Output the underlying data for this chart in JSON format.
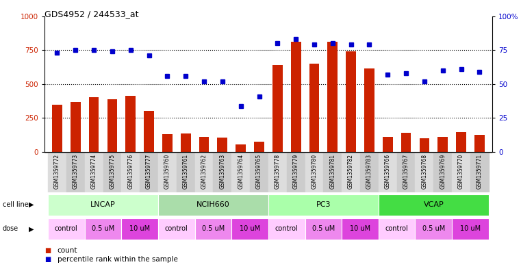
{
  "title": "GDS4952 / 244533_at",
  "samples": [
    "GSM1359772",
    "GSM1359773",
    "GSM1359774",
    "GSM1359775",
    "GSM1359776",
    "GSM1359777",
    "GSM1359760",
    "GSM1359761",
    "GSM1359762",
    "GSM1359763",
    "GSM1359764",
    "GSM1359765",
    "GSM1359778",
    "GSM1359779",
    "GSM1359780",
    "GSM1359781",
    "GSM1359782",
    "GSM1359783",
    "GSM1359766",
    "GSM1359767",
    "GSM1359768",
    "GSM1359769",
    "GSM1359770",
    "GSM1359771"
  ],
  "counts": [
    350,
    370,
    405,
    390,
    415,
    305,
    130,
    135,
    110,
    105,
    55,
    75,
    640,
    810,
    650,
    810,
    740,
    615,
    110,
    140,
    100,
    110,
    145,
    125
  ],
  "percentiles": [
    73,
    75,
    75,
    74,
    75,
    71,
    56,
    56,
    52,
    52,
    34,
    41,
    80,
    83,
    79,
    80,
    79,
    79,
    57,
    58,
    52,
    60,
    61,
    59
  ],
  "cell_lines": [
    {
      "name": "LNCAP",
      "start": 0,
      "end": 6,
      "color": "#ccffcc"
    },
    {
      "name": "NCIH660",
      "start": 6,
      "end": 12,
      "color": "#aaddaa"
    },
    {
      "name": "PC3",
      "start": 12,
      "end": 18,
      "color": "#aaffaa"
    },
    {
      "name": "VCAP",
      "start": 18,
      "end": 24,
      "color": "#44dd44"
    }
  ],
  "dose_groups": [
    {
      "label": "control",
      "start": 0,
      "end": 2,
      "color": "#ffccff"
    },
    {
      "label": "0.5 uM",
      "start": 2,
      "end": 4,
      "color": "#ee88ee"
    },
    {
      "label": "10 uM",
      "start": 4,
      "end": 6,
      "color": "#dd44dd"
    },
    {
      "label": "control",
      "start": 6,
      "end": 8,
      "color": "#ffccff"
    },
    {
      "label": "0.5 uM",
      "start": 8,
      "end": 10,
      "color": "#ee88ee"
    },
    {
      "label": "10 uM",
      "start": 10,
      "end": 12,
      "color": "#dd44dd"
    },
    {
      "label": "control",
      "start": 12,
      "end": 14,
      "color": "#ffccff"
    },
    {
      "label": "0.5 uM",
      "start": 14,
      "end": 16,
      "color": "#ee88ee"
    },
    {
      "label": "10 uM",
      "start": 16,
      "end": 18,
      "color": "#dd44dd"
    },
    {
      "label": "control",
      "start": 18,
      "end": 20,
      "color": "#ffccff"
    },
    {
      "label": "0.5 uM",
      "start": 20,
      "end": 22,
      "color": "#ee88ee"
    },
    {
      "label": "10 uM",
      "start": 22,
      "end": 24,
      "color": "#dd44dd"
    }
  ],
  "bar_color": "#cc2200",
  "dot_color": "#0000cc",
  "ylim_left": [
    0,
    1000
  ],
  "ylim_right": [
    0,
    100
  ],
  "yticks_left": [
    0,
    250,
    500,
    750,
    1000
  ],
  "yticks_right": [
    0,
    25,
    50,
    75,
    100
  ],
  "grid_values": [
    250,
    500,
    750
  ],
  "background_color": "#ffffff",
  "label_bg_even": "#dddddd",
  "label_bg_odd": "#cccccc"
}
